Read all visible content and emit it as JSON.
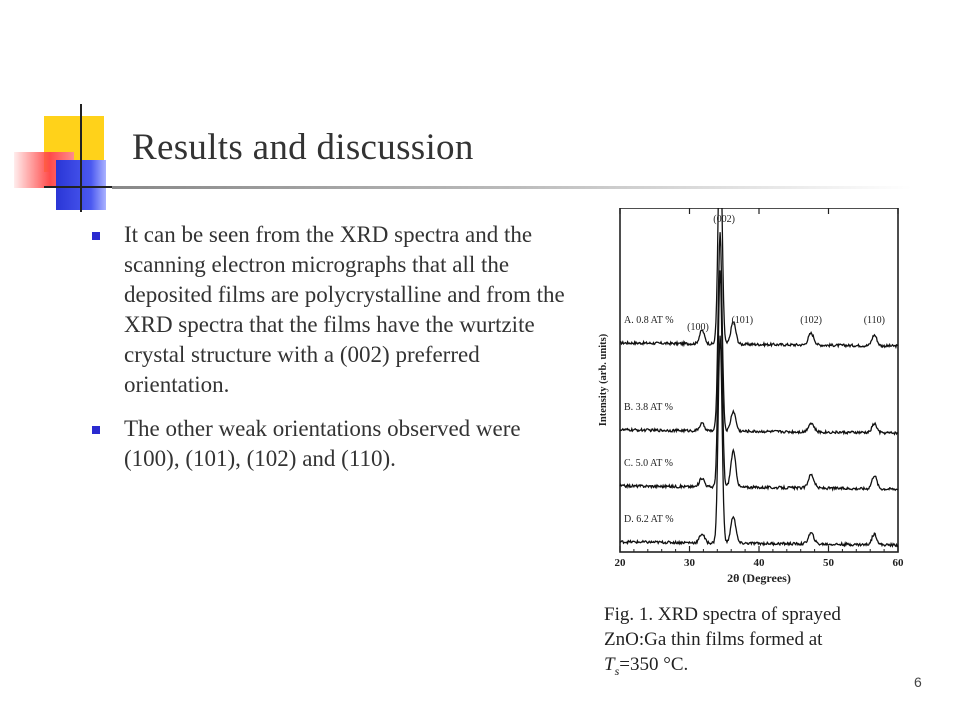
{
  "slide": {
    "title": "Results and discussion",
    "bullets": [
      "It can be seen from the XRD spectra and the scanning electron micrographs that all the deposited films are polycrystalline and from the XRD spectra that the films have the wurtzite crystal structure with a (002) preferred orientation.",
      "The other weak orientations observed were (100), (101), (102) and (110)."
    ],
    "caption": {
      "line1": "Fig. 1. XRD spectra of sprayed",
      "line2": "ZnO:Ga thin films formed at",
      "t_symbol": "T",
      "t_subscript": "s",
      "t_value": "=350 °C."
    },
    "page_number": "6",
    "accent_colors": {
      "bullet": "#2a2ad0",
      "deco_yellow": "#ffd21a",
      "deco_blue": "#2a36d6",
      "deco_red": "#ff4b4b"
    }
  },
  "chart_data": {
    "type": "line",
    "xlabel": "2θ (Degrees)",
    "ylabel": "Intensity (arb. units)",
    "xlim": [
      20,
      60
    ],
    "x_ticks": [
      20,
      30,
      40,
      50,
      60
    ],
    "peak_labels": [
      "(100)",
      "(002)",
      "(101)",
      "(102)",
      "(110)"
    ],
    "peaks_2theta": [
      31.8,
      34.4,
      36.3,
      47.5,
      56.6
    ],
    "series": [
      {
        "name": "A. 0.8 AT %",
        "peak_heights": [
          0.15,
          2.4,
          0.25,
          0.13,
          0.12
        ]
      },
      {
        "name": "B. 3.8 AT %",
        "peak_heights": [
          0.08,
          2.2,
          0.22,
          0.1,
          0.1
        ]
      },
      {
        "name": "C. 5.0 AT %",
        "peak_heights": [
          0.1,
          2.4,
          0.4,
          0.15,
          0.15
        ]
      },
      {
        "name": "D. 6.2 AT %",
        "peak_heights": [
          0.1,
          2.3,
          0.3,
          0.12,
          0.12
        ]
      }
    ]
  }
}
